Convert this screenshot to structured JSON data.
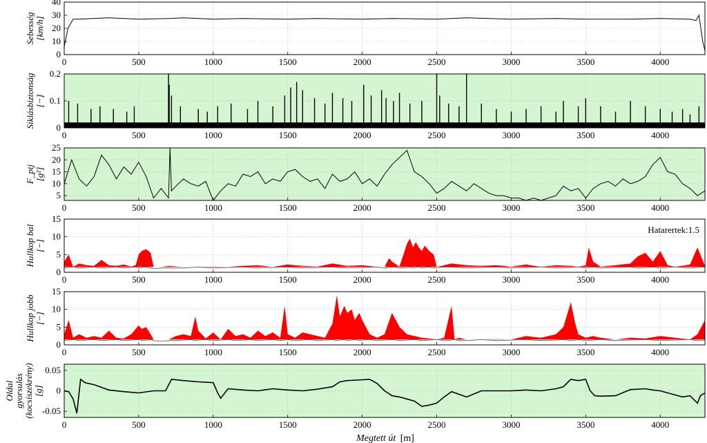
{
  "chart_data": {
    "type": "line",
    "x_axis": {
      "label_italic": "Megtett út",
      "label_unit": "[m]",
      "range": [
        0,
        4300
      ],
      "ticks": [
        0,
        500,
        1000,
        1500,
        2000,
        2500,
        3000,
        3500,
        4000
      ],
      "tick_labels": [
        "0",
        "500",
        "1000",
        "1500",
        "2000",
        "2500",
        "3000",
        "3500",
        "4000"
      ]
    },
    "colors": {
      "green_bg": "#d3f5cf",
      "white_bg": "#ffffff",
      "fill_red": "#ff0000",
      "line": "#000000",
      "grid": "#bdbdbd"
    },
    "panels": [
      {
        "id": "speed",
        "ylabel_lines": [
          "Sebesség",
          "[km/h]"
        ],
        "ylim": [
          0,
          40
        ],
        "yticks": [
          0,
          10,
          20,
          30,
          40
        ],
        "ytick_labels": [
          "0",
          "10",
          "20",
          "30",
          "40"
        ],
        "background": "white",
        "style": "line",
        "x": [
          0,
          25,
          60,
          100,
          300,
          500,
          700,
          800,
          1000,
          1200,
          1500,
          1700,
          2000,
          2200,
          2500,
          2700,
          3000,
          3300,
          3500,
          3800,
          4000,
          4200,
          4240,
          4260,
          4285,
          4300
        ],
        "values": [
          6,
          20,
          27,
          27,
          28,
          27,
          27.5,
          28,
          27,
          27.5,
          27,
          27.5,
          27,
          27.5,
          27,
          28,
          27,
          27.5,
          27,
          27,
          27.5,
          27,
          26,
          30,
          10,
          3
        ]
      },
      {
        "id": "siklas",
        "ylabel_lines": [
          "Siklásbiztonság",
          "[−]"
        ],
        "ylim": [
          0,
          0.2
        ],
        "yticks": [
          0,
          0.1,
          0.2
        ],
        "ytick_labels": [
          "0",
          "0.1",
          "0.2"
        ],
        "background": "green",
        "style": "spikes",
        "baseline": 0.02,
        "x": [
          30,
          90,
          180,
          240,
          330,
          420,
          470,
          700,
          705,
          720,
          780,
          900,
          960,
          1030,
          1120,
          1230,
          1300,
          1400,
          1480,
          1520,
          1560,
          1600,
          1680,
          1750,
          1800,
          1870,
          1930,
          2010,
          2060,
          2130,
          2160,
          2210,
          2250,
          2320,
          2400,
          2500,
          2520,
          2580,
          2650,
          2700,
          2800,
          2900,
          3000,
          3100,
          3200,
          3300,
          3350,
          3450,
          3500,
          3600,
          3700,
          3800,
          3900,
          4000,
          4080,
          4150,
          4200,
          4260
        ],
        "values": [
          0.1,
          0.09,
          0.07,
          0.08,
          0.07,
          0.06,
          0.08,
          0.2,
          0.16,
          0.12,
          0.08,
          0.07,
          0.06,
          0.08,
          0.09,
          0.07,
          0.1,
          0.08,
          0.12,
          0.15,
          0.17,
          0.14,
          0.11,
          0.09,
          0.13,
          0.11,
          0.1,
          0.16,
          0.12,
          0.14,
          0.11,
          0.1,
          0.13,
          0.09,
          0.1,
          0.2,
          0.12,
          0.09,
          0.08,
          0.2,
          0.09,
          0.07,
          0.06,
          0.07,
          0.08,
          0.06,
          0.1,
          0.08,
          0.11,
          0.08,
          0.06,
          0.1,
          0.08,
          0.07,
          0.06,
          0.07,
          0.05,
          0.08
        ]
      },
      {
        "id": "fptj",
        "ylabel_lines": [
          "F_ptj",
          "[g²]"
        ],
        "ylim": [
          3,
          25
        ],
        "yticks": [
          5,
          10,
          15,
          20,
          25
        ],
        "ytick_labels": [
          "5",
          "10",
          "15",
          "20",
          "25"
        ],
        "background": "green",
        "style": "line",
        "x": [
          0,
          50,
          100,
          150,
          200,
          250,
          300,
          350,
          400,
          450,
          500,
          550,
          600,
          650,
          700,
          710,
          720,
          750,
          800,
          850,
          900,
          950,
          1000,
          1050,
          1100,
          1150,
          1200,
          1250,
          1300,
          1350,
          1400,
          1450,
          1500,
          1550,
          1600,
          1650,
          1700,
          1750,
          1800,
          1850,
          1900,
          1950,
          2000,
          2050,
          2100,
          2150,
          2200,
          2250,
          2300,
          2350,
          2400,
          2450,
          2500,
          2550,
          2600,
          2650,
          2700,
          2750,
          2800,
          2850,
          2900,
          2950,
          3000,
          3050,
          3100,
          3150,
          3200,
          3250,
          3300,
          3350,
          3400,
          3450,
          3500,
          3550,
          3600,
          3650,
          3700,
          3750,
          3800,
          3850,
          3900,
          3950,
          4000,
          4050,
          4100,
          4150,
          4200,
          4250,
          4300
        ],
        "values": [
          10,
          20,
          12,
          9,
          13,
          22,
          18,
          12,
          17,
          14,
          19,
          13,
          4,
          8,
          4,
          25,
          7,
          9,
          12,
          10,
          9,
          11,
          3,
          7,
          10,
          9,
          14,
          13,
          15,
          10,
          12,
          11,
          15,
          16,
          13,
          11,
          12,
          8,
          14,
          11,
          12,
          15,
          10,
          12,
          9,
          14,
          18,
          21,
          24,
          15,
          13,
          10,
          6,
          8,
          11,
          9,
          7,
          10,
          8,
          6,
          5,
          5,
          4,
          4,
          3,
          4,
          3,
          4,
          5,
          9,
          7,
          8,
          4,
          8,
          10,
          11,
          9,
          12,
          10,
          11,
          13,
          18,
          21,
          15,
          14,
          10,
          8,
          5,
          7
        ]
      },
      {
        "id": "hullkop_bal",
        "ylabel_lines": [
          "Hullkop bal",
          "[−]"
        ],
        "ylim": [
          0,
          15
        ],
        "yticks": [
          0,
          5,
          10,
          15
        ],
        "ytick_labels": [
          "0",
          "5",
          "10",
          "15"
        ],
        "background": "white",
        "style": "threshold_fill",
        "annotation": "Hatarertek:1.5",
        "threshold": 1.5,
        "x": [
          0,
          30,
          60,
          100,
          150,
          200,
          250,
          300,
          350,
          400,
          450,
          480,
          500,
          520,
          550,
          580,
          600,
          650,
          700,
          800,
          900,
          1000,
          1100,
          1200,
          1300,
          1400,
          1500,
          1600,
          1700,
          1800,
          1900,
          2000,
          2100,
          2150,
          2180,
          2200,
          2250,
          2300,
          2320,
          2340,
          2360,
          2380,
          2400,
          2420,
          2450,
          2480,
          2500,
          2600,
          2700,
          2800,
          2900,
          3000,
          3100,
          3200,
          3300,
          3400,
          3450,
          3500,
          3520,
          3550,
          3600,
          3700,
          3800,
          3850,
          3900,
          3950,
          4000,
          4050,
          4100,
          4200,
          4250,
          4300
        ],
        "values": [
          3,
          5,
          1.5,
          2.5,
          2,
          1.8,
          3.5,
          2,
          1.8,
          2.2,
          1.6,
          2,
          5,
          6,
          6.5,
          5.5,
          1,
          1.2,
          1.8,
          1.2,
          1.5,
          1.6,
          1.4,
          1.8,
          2,
          1.5,
          2.2,
          1.8,
          1.6,
          2.5,
          1.8,
          2,
          1.5,
          1.2,
          4,
          3,
          1.6,
          8,
          9.5,
          7,
          8.5,
          7,
          6,
          7.5,
          6,
          5,
          1.5,
          2.5,
          2,
          1.8,
          2,
          1.6,
          2.2,
          1.5,
          2,
          1.8,
          1.5,
          2,
          7,
          3,
          1.6,
          2,
          2.5,
          4.5,
          5.5,
          3,
          6,
          2,
          1.5,
          2.2,
          7,
          1.8
        ]
      },
      {
        "id": "hullkop_jobb",
        "ylabel_lines": [
          "Hullkop jobb",
          "[−]"
        ],
        "ylim": [
          0,
          15
        ],
        "yticks": [
          0,
          5,
          10,
          15
        ],
        "ytick_labels": [
          "0",
          "5",
          "10",
          "15"
        ],
        "background": "white",
        "style": "threshold_fill",
        "threshold": 1.5,
        "x": [
          0,
          30,
          60,
          100,
          150,
          200,
          250,
          300,
          350,
          400,
          450,
          500,
          520,
          550,
          580,
          600,
          650,
          700,
          750,
          800,
          850,
          880,
          900,
          950,
          1000,
          1050,
          1100,
          1150,
          1200,
          1250,
          1300,
          1350,
          1400,
          1450,
          1480,
          1500,
          1550,
          1600,
          1650,
          1700,
          1750,
          1800,
          1830,
          1850,
          1880,
          1900,
          1930,
          1950,
          1980,
          2000,
          2050,
          2100,
          2150,
          2200,
          2250,
          2300,
          2350,
          2400,
          2450,
          2500,
          2550,
          2600,
          2620,
          2650,
          2700,
          2800,
          2900,
          3000,
          3100,
          3200,
          3300,
          3350,
          3400,
          3430,
          3450,
          3500,
          3550,
          3600,
          3700,
          3800,
          3900,
          4000,
          4100,
          4200,
          4250,
          4300
        ],
        "values": [
          3,
          7,
          2,
          3,
          2,
          2.5,
          2,
          4,
          2,
          1.8,
          3,
          5.5,
          4.5,
          5,
          3,
          1.2,
          1,
          1.2,
          2.5,
          3,
          2.5,
          8,
          4,
          1.8,
          3.5,
          1.5,
          4.5,
          2.5,
          3,
          2,
          4,
          2.5,
          3.5,
          2,
          11,
          3,
          2,
          3.5,
          3,
          2.5,
          2,
          6,
          14,
          8,
          11,
          9,
          10,
          7,
          9,
          7,
          3,
          2,
          3,
          9,
          5,
          3,
          2.5,
          2,
          1.8,
          1.5,
          2,
          11,
          1.5,
          2,
          1.2,
          1.5,
          1.6,
          1.5,
          2.5,
          2,
          3,
          5,
          12,
          6,
          3,
          2,
          2.5,
          2,
          1.5,
          2,
          1.8,
          2.5,
          2,
          1.5,
          3,
          7
        ]
      },
      {
        "id": "oldal",
        "ylabel_lines": [
          "Oldal",
          "gyorsulás",
          "(kocsiszekrény)",
          "[g]"
        ],
        "ylim": [
          -0.065,
          0.065
        ],
        "yticks": [
          -0.05,
          0,
          0.05
        ],
        "ytick_labels": [
          "-0.05",
          "0",
          "0.05"
        ],
        "background": "green",
        "style": "line",
        "x": [
          0,
          30,
          60,
          85,
          110,
          140,
          200,
          300,
          400,
          500,
          600,
          680,
          720,
          800,
          900,
          1000,
          1030,
          1050,
          1100,
          1200,
          1300,
          1400,
          1500,
          1600,
          1700,
          1800,
          1850,
          1900,
          2000,
          2050,
          2100,
          2150,
          2200,
          2250,
          2300,
          2350,
          2400,
          2450,
          2500,
          2550,
          2600,
          2700,
          2800,
          2900,
          3000,
          3100,
          3200,
          3300,
          3350,
          3400,
          3450,
          3500,
          3530,
          3560,
          3600,
          3700,
          3800,
          3900,
          3950,
          4000,
          4050,
          4100,
          4150,
          4200,
          4250,
          4270,
          4300
        ],
        "values": [
          0,
          -0.002,
          -0.02,
          -0.055,
          0.028,
          0.02,
          0.015,
          0.002,
          -0.002,
          -0.005,
          0,
          0,
          0.028,
          0.025,
          0.022,
          0.02,
          -0.005,
          -0.018,
          0.005,
          0.002,
          0,
          0.005,
          0.002,
          0,
          0.004,
          0.01,
          0.022,
          0.025,
          0.027,
          0.028,
          0.018,
          0,
          -0.012,
          -0.015,
          -0.02,
          -0.025,
          -0.038,
          -0.035,
          -0.03,
          -0.015,
          -0.002,
          -0.015,
          0,
          0,
          0,
          0.002,
          0,
          0.005,
          0.01,
          0.028,
          0.025,
          0.028,
          0,
          -0.012,
          -0.013,
          -0.012,
          0.003,
          0.005,
          0.002,
          0,
          -0.005,
          -0.01,
          -0.015,
          -0.012,
          -0.03,
          -0.012,
          -0.005
        ]
      }
    ]
  }
}
